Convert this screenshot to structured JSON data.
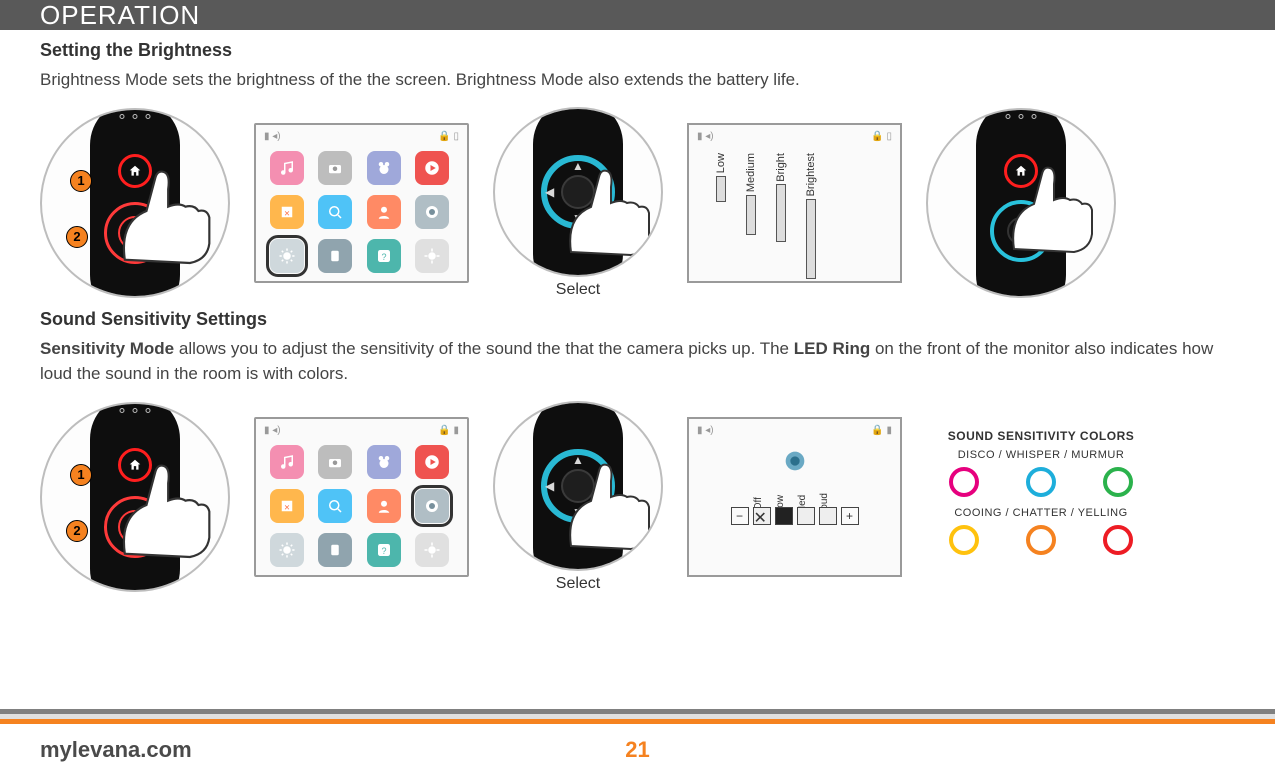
{
  "header": {
    "title": "OPERATION"
  },
  "brightness": {
    "heading": "Setting the Brightness",
    "body": "Brightness Mode sets the brightness of the the screen. Brightness Mode also extends the battery life.",
    "step1": "1",
    "step2": "2",
    "select_label": "Select",
    "options": [
      "Low",
      "Medium",
      "Bright",
      "Brightest"
    ],
    "option_heights": [
      26,
      40,
      58,
      80
    ]
  },
  "sound": {
    "heading": "Sound Sensitivity Settings",
    "body_prefix_bold": "Sensitivity Mode",
    "body_mid": " allows you to adjust the sensitivity of the sound the that the camera picks up. The ",
    "body_bold2": "LED Ring",
    "body_tail": " on the front of the monitor also indicates how loud the sound in the room is with colors.",
    "step1": "1",
    "step2": "2",
    "select_label": "Select",
    "levels": [
      "Off",
      "Low",
      "Med",
      "Loud"
    ],
    "legend": {
      "title": "SOUND SENSITIVITY COLORS",
      "row1_label": "DISCO /  WHISPER / MURMUR",
      "row1_colors": [
        "#e6007e",
        "#1eaedb",
        "#2bb24c"
      ],
      "row2_label": "COOING / CHATTER / YELLING",
      "row2_colors": [
        "#ffc20e",
        "#f58220",
        "#ed1c24"
      ]
    }
  },
  "menu_icons": [
    {
      "bg": "#f48fb1",
      "glyph": "music"
    },
    {
      "bg": "#bdbdbd",
      "glyph": "camera"
    },
    {
      "bg": "#9fa8da",
      "glyph": "bear"
    },
    {
      "bg": "#ef5350",
      "glyph": "play"
    },
    {
      "bg": "#ffb74d",
      "glyph": "nozoom"
    },
    {
      "bg": "#4fc3f7",
      "glyph": "search"
    },
    {
      "bg": "#ff8a65",
      "glyph": "person"
    },
    {
      "bg": "#b0bec5",
      "glyph": "mic"
    },
    {
      "bg": "#cfd8dc",
      "glyph": "sun"
    },
    {
      "bg": "#90a4ae",
      "glyph": "device"
    },
    {
      "bg": "#4db6ac",
      "glyph": "help"
    },
    {
      "bg": "#e0e0e0",
      "glyph": "gear"
    }
  ],
  "footer": {
    "band_colors": [
      "#808080",
      "#e0e0e0",
      "#f58220"
    ],
    "domain": "mylevana.com",
    "page": "21",
    "page_color": "#f58220"
  }
}
